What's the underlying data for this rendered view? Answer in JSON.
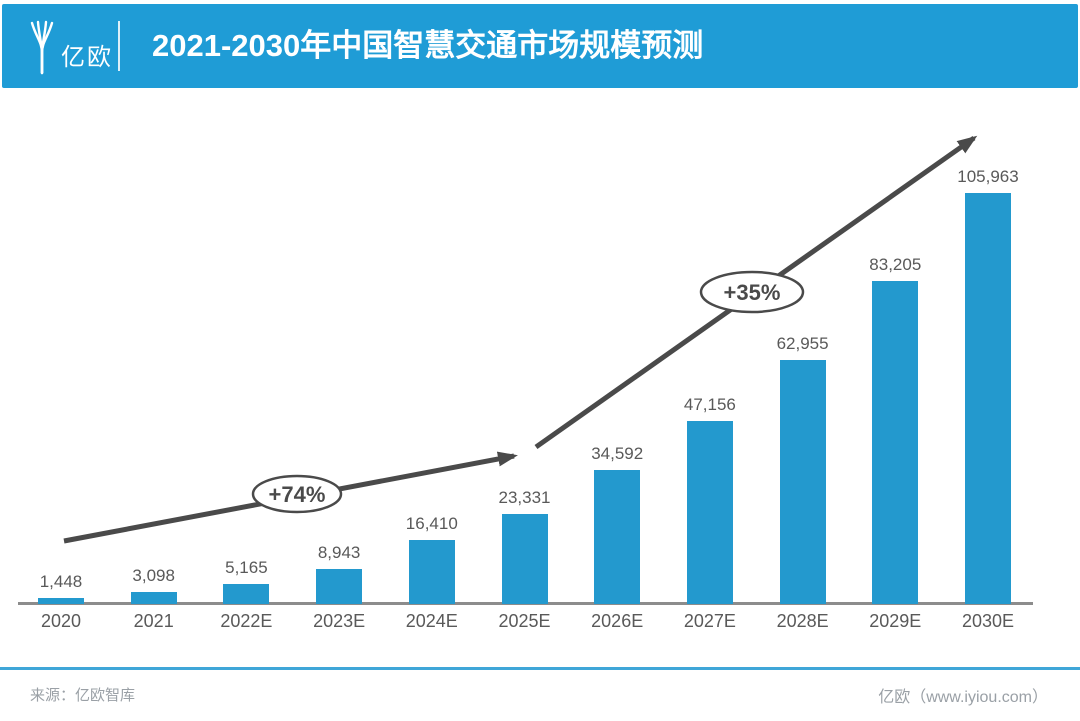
{
  "header": {
    "logo_text": "亿欧",
    "title": "2021-2030年中国智慧交通市场规模预测"
  },
  "chart_data": {
    "type": "bar",
    "title": "2021-2030年中国智慧交通市场规模预测",
    "categories": [
      "2020",
      "2021",
      "2022E",
      "2023E",
      "2024E",
      "2025E",
      "2026E",
      "2027E",
      "2028E",
      "2029E",
      "2030E"
    ],
    "values": [
      1448,
      3098,
      5165,
      8943,
      16410,
      23331,
      34592,
      47156,
      62955,
      83205,
      105963
    ],
    "values_display": [
      "1,448",
      "3,098",
      "5,165",
      "8,943",
      "16,410",
      "23,331",
      "34,592",
      "47,156",
      "62,955",
      "83,205",
      "105,963"
    ],
    "xlabel": "",
    "ylabel": "",
    "ylim": [
      0,
      110000
    ],
    "grid": false,
    "legend": "none",
    "bar_color": "#2399CE",
    "annotations": [
      {
        "label": "+74%",
        "applies_to": "2020-2025E trend arrow"
      },
      {
        "label": "+35%",
        "applies_to": "2025E-2030E trend arrow"
      }
    ]
  },
  "footer": {
    "source": "来源：亿欧智库",
    "brand": "亿欧（www.iyiou.com）"
  },
  "colors": {
    "banner_blue": "#1F9CD6",
    "bar_blue": "#2399CE",
    "arrow_gray": "#4A4A4A",
    "axis_gray": "#8C8C8C",
    "label_gray": "#595959",
    "divider_blue": "#3FA6D8",
    "footer_gray": "#9AA0A6"
  }
}
